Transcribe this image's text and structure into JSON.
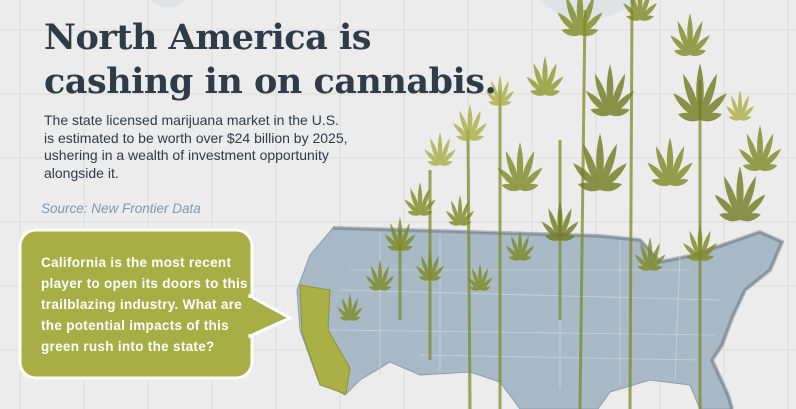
{
  "header": {
    "title_lines": [
      "North America is",
      "cashing in on cannabis."
    ]
  },
  "intro": {
    "lines": [
      "The state licensed marijuana market in the U.S.",
      "is estimated to be worth over $24 billion by 2025,",
      "ushering in a wealth of investment opportunity",
      "alongside it."
    ],
    "source": "Source: New Frontier Data"
  },
  "callout": {
    "lines": [
      "California is the most recent",
      "player to open its doors to this",
      "trailblazing industry. What are",
      "the potential impacts of this",
      "green rush into the state?"
    ]
  }
}
